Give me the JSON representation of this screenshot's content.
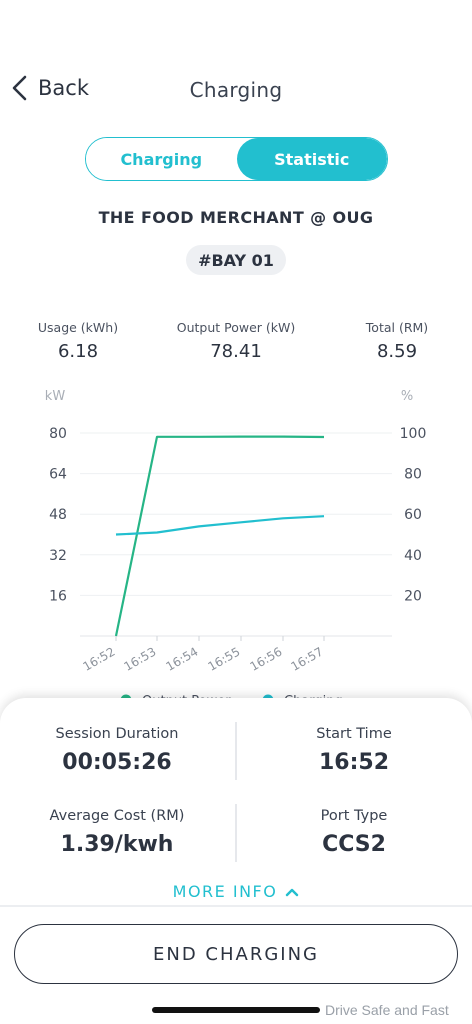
{
  "nav": {
    "back_label": "Back",
    "title": "Charging"
  },
  "tabs": [
    {
      "label": "Charging",
      "active": false
    },
    {
      "label": "Statistic",
      "active": true
    }
  ],
  "station": {
    "name": "THE FOOD MERCHANT @ OUG",
    "bay": "#BAY 01"
  },
  "stats": [
    {
      "label": "Usage (kWh)",
      "value": "6.18"
    },
    {
      "label": "Output Power (kW)",
      "value": "78.41"
    },
    {
      "label": "Total (RM)",
      "value": "8.59"
    }
  ],
  "chart_data": {
    "type": "line",
    "x": [
      "16:52",
      "16:53",
      "16:54",
      "16:55",
      "16:56",
      "16:57"
    ],
    "y_left_label": "kW",
    "y_right_label": "%",
    "y_left_ticks": [
      16,
      32,
      48,
      64,
      80
    ],
    "y_right_ticks": [
      20,
      40,
      60,
      80,
      100
    ],
    "y_left_range": [
      0,
      80
    ],
    "y_right_range": [
      0,
      100
    ],
    "grid": true,
    "legend_position": "bottom",
    "series": [
      {
        "name": "Output Power",
        "axis": "left",
        "color": "#26b586",
        "values": [
          0,
          78.5,
          78.5,
          78.6,
          78.6,
          78.41
        ]
      },
      {
        "name": "Charging",
        "axis": "right",
        "color": "#22bfcf",
        "values": [
          50,
          51,
          54,
          56,
          58,
          59
        ]
      }
    ]
  },
  "session": {
    "duration_label": "Session Duration",
    "duration_value": "00:05:26",
    "start_label": "Start Time",
    "start_value": "16:52",
    "cost_label": "Average Cost (RM)",
    "cost_value": "1.39/kwh",
    "port_label": "Port Type",
    "port_value": "CCS2"
  },
  "more_info_label": "MORE INFO",
  "end_button_label": "END CHARGING",
  "watermark": "Drive Safe and Fast",
  "colors": {
    "accent": "#22bfcf",
    "output_power": "#26b586",
    "text": "#2c3340"
  }
}
